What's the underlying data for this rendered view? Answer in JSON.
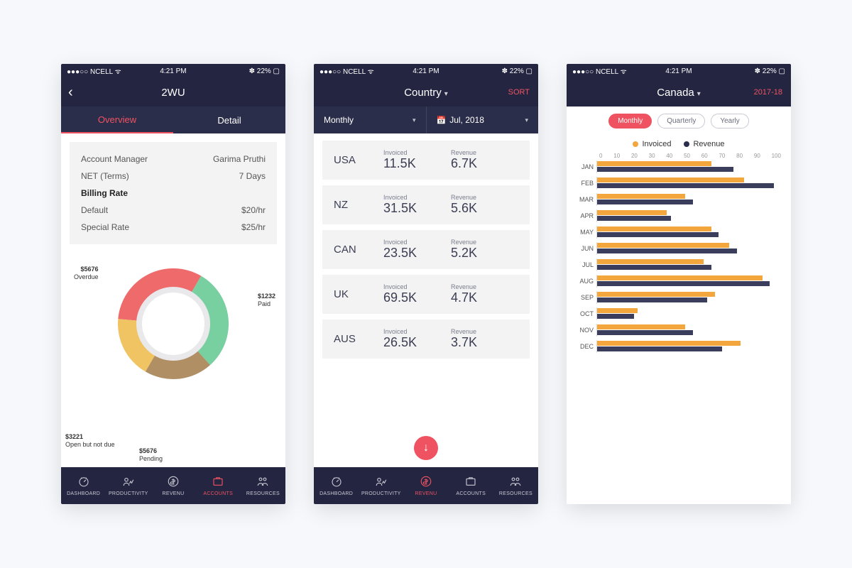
{
  "status_bar": {
    "carrier": "●●●○○ NCELL ᯤ",
    "time": "4:21 PM",
    "battery": "✽ 22% ▢"
  },
  "tabbar": [
    {
      "id": "dashboard",
      "label": "DASHBOARD"
    },
    {
      "id": "productivity",
      "label": "PRODUCTIVITY"
    },
    {
      "id": "revenu",
      "label": "REVENU"
    },
    {
      "id": "accounts",
      "label": "ACCOUNTS"
    },
    {
      "id": "resources",
      "label": "RESOURCES"
    }
  ],
  "screen1": {
    "title": "2WU",
    "tabs": {
      "overview": "Overview",
      "detail": "Detail",
      "active": "overview"
    },
    "info": [
      {
        "label": "Account Manager",
        "value": "Garima Pruthi"
      },
      {
        "label": "NET (Terms)",
        "value": "7 Days"
      },
      {
        "label": "Billing Rate",
        "value": "",
        "bold": true
      },
      {
        "label": "Default",
        "value": "$20/hr"
      },
      {
        "label": "Special Rate",
        "value": "$25/hr"
      }
    ],
    "donut": {
      "type": "donut",
      "slices": [
        {
          "label": "Overdue",
          "amount": "$5676",
          "color": "#ef6a6a",
          "pct": 32
        },
        {
          "label": "Paid",
          "amount": "$1232",
          "color": "#78cfa0",
          "pct": 30
        },
        {
          "label": "Pending",
          "amount": "$5676",
          "color": "#b08f64",
          "pct": 20
        },
        {
          "label": "Open but not due",
          "amount": "$3221",
          "color": "#f0c363",
          "pct": 18
        }
      ],
      "inner_ring": "#e9e9ec",
      "hole": "#ffffff"
    },
    "active_tab": "accounts"
  },
  "screen2": {
    "title": "Country",
    "sort_label": "SORT",
    "filters": {
      "left": "Monthly",
      "right": "Jul, 2018"
    },
    "countries": [
      {
        "name": "USA",
        "invoiced_lbl": "Invoiced",
        "invoiced": "11.5K",
        "revenue_lbl": "Revenue",
        "revenue": "6.7K"
      },
      {
        "name": "NZ",
        "invoiced_lbl": "Invoiced",
        "invoiced": "31.5K",
        "revenue_lbl": "Revenue",
        "revenue": "5.6K"
      },
      {
        "name": "CAN",
        "invoiced_lbl": "Invoiced",
        "invoiced": "23.5K",
        "revenue_lbl": "Revenue",
        "revenue": "5.2K"
      },
      {
        "name": "UK",
        "invoiced_lbl": "Invoiced",
        "invoiced": "69.5K",
        "revenue_lbl": "Revenue",
        "revenue": "4.7K"
      },
      {
        "name": "AUS",
        "invoiced_lbl": "Invoiced",
        "invoiced": "26.5K",
        "revenue_lbl": "Revenue",
        "revenue": "3.7K"
      }
    ],
    "active_tab": "revenu"
  },
  "screen3": {
    "title": "Canada",
    "year": "2017-18",
    "periods": {
      "monthly": "Monthly",
      "quarterly": "Quarterly",
      "yearly": "Yearly",
      "active": "monthly"
    },
    "legend": {
      "invoiced": "Invoiced",
      "revenue": "Revenue"
    },
    "xaxis": {
      "min": 0,
      "max": 100,
      "step": 10
    },
    "bar_colors": {
      "invoiced": "#f3a63c",
      "revenue": "#3a3d5c"
    },
    "months": [
      {
        "m": "JAN",
        "inv": 62,
        "rev": 74
      },
      {
        "m": "FEB",
        "inv": 80,
        "rev": 96
      },
      {
        "m": "MAR",
        "inv": 48,
        "rev": 52
      },
      {
        "m": "APR",
        "inv": 38,
        "rev": 40
      },
      {
        "m": "MAY",
        "inv": 62,
        "rev": 66
      },
      {
        "m": "JUN",
        "inv": 72,
        "rev": 76
      },
      {
        "m": "JUL",
        "inv": 58,
        "rev": 62
      },
      {
        "m": "AUG",
        "inv": 90,
        "rev": 94
      },
      {
        "m": "SEP",
        "inv": 64,
        "rev": 60
      },
      {
        "m": "OCT",
        "inv": 22,
        "rev": 20
      },
      {
        "m": "NOV",
        "inv": 48,
        "rev": 52
      },
      {
        "m": "DEC",
        "inv": 78,
        "rev": 68
      }
    ]
  }
}
